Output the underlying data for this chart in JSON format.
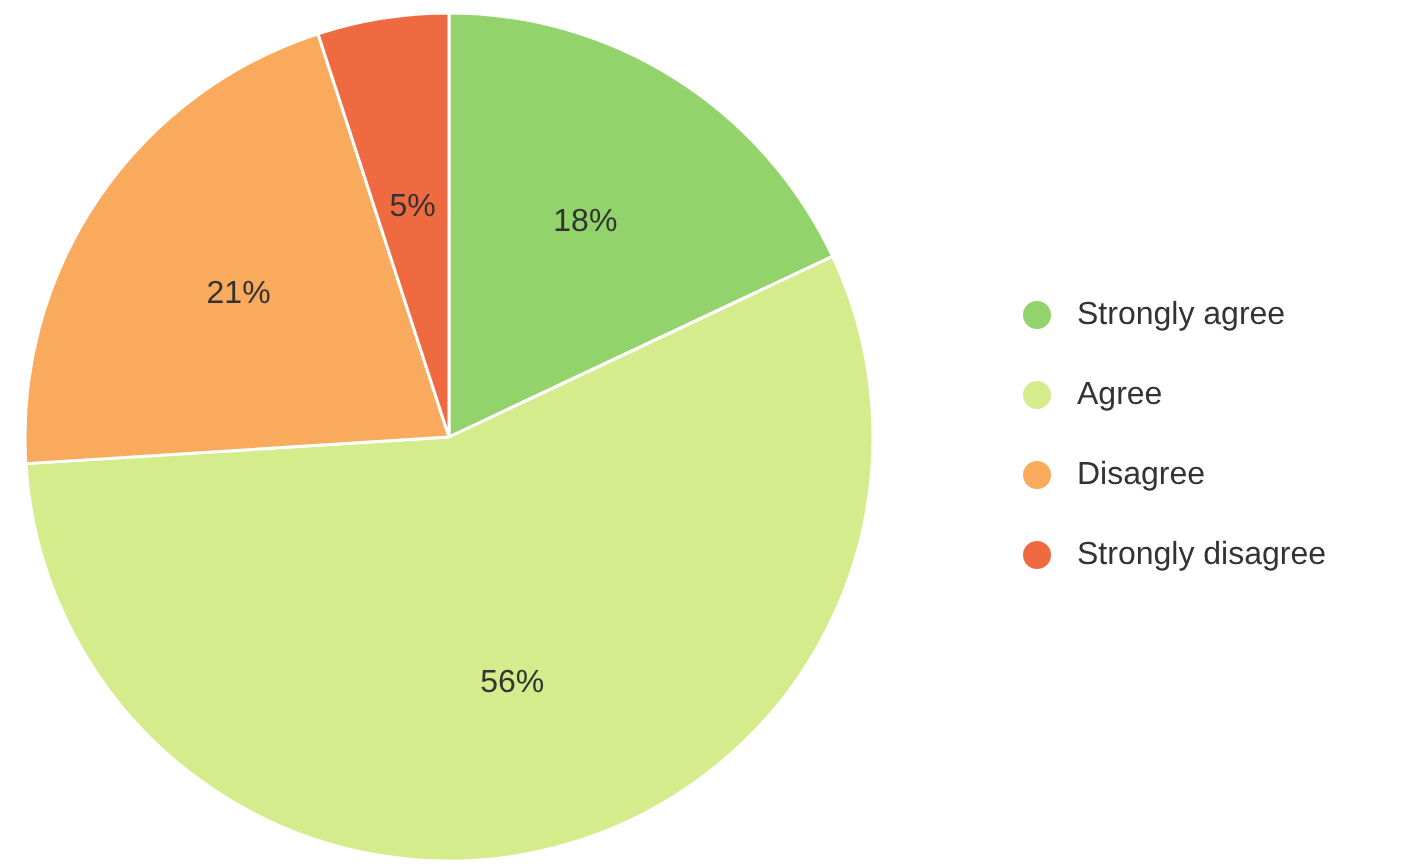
{
  "chart_data": {
    "type": "pie",
    "categories": [
      "Strongly agree",
      "Agree",
      "Disagree",
      "Strongly disagree"
    ],
    "values": [
      18,
      56,
      21,
      5
    ],
    "colors": [
      "#93d36b",
      "#d4ec8c",
      "#f9aa5c",
      "#ef6a40"
    ],
    "value_labels": [
      "18%",
      "56%",
      "21%",
      "5%"
    ],
    "legend": "right"
  }
}
